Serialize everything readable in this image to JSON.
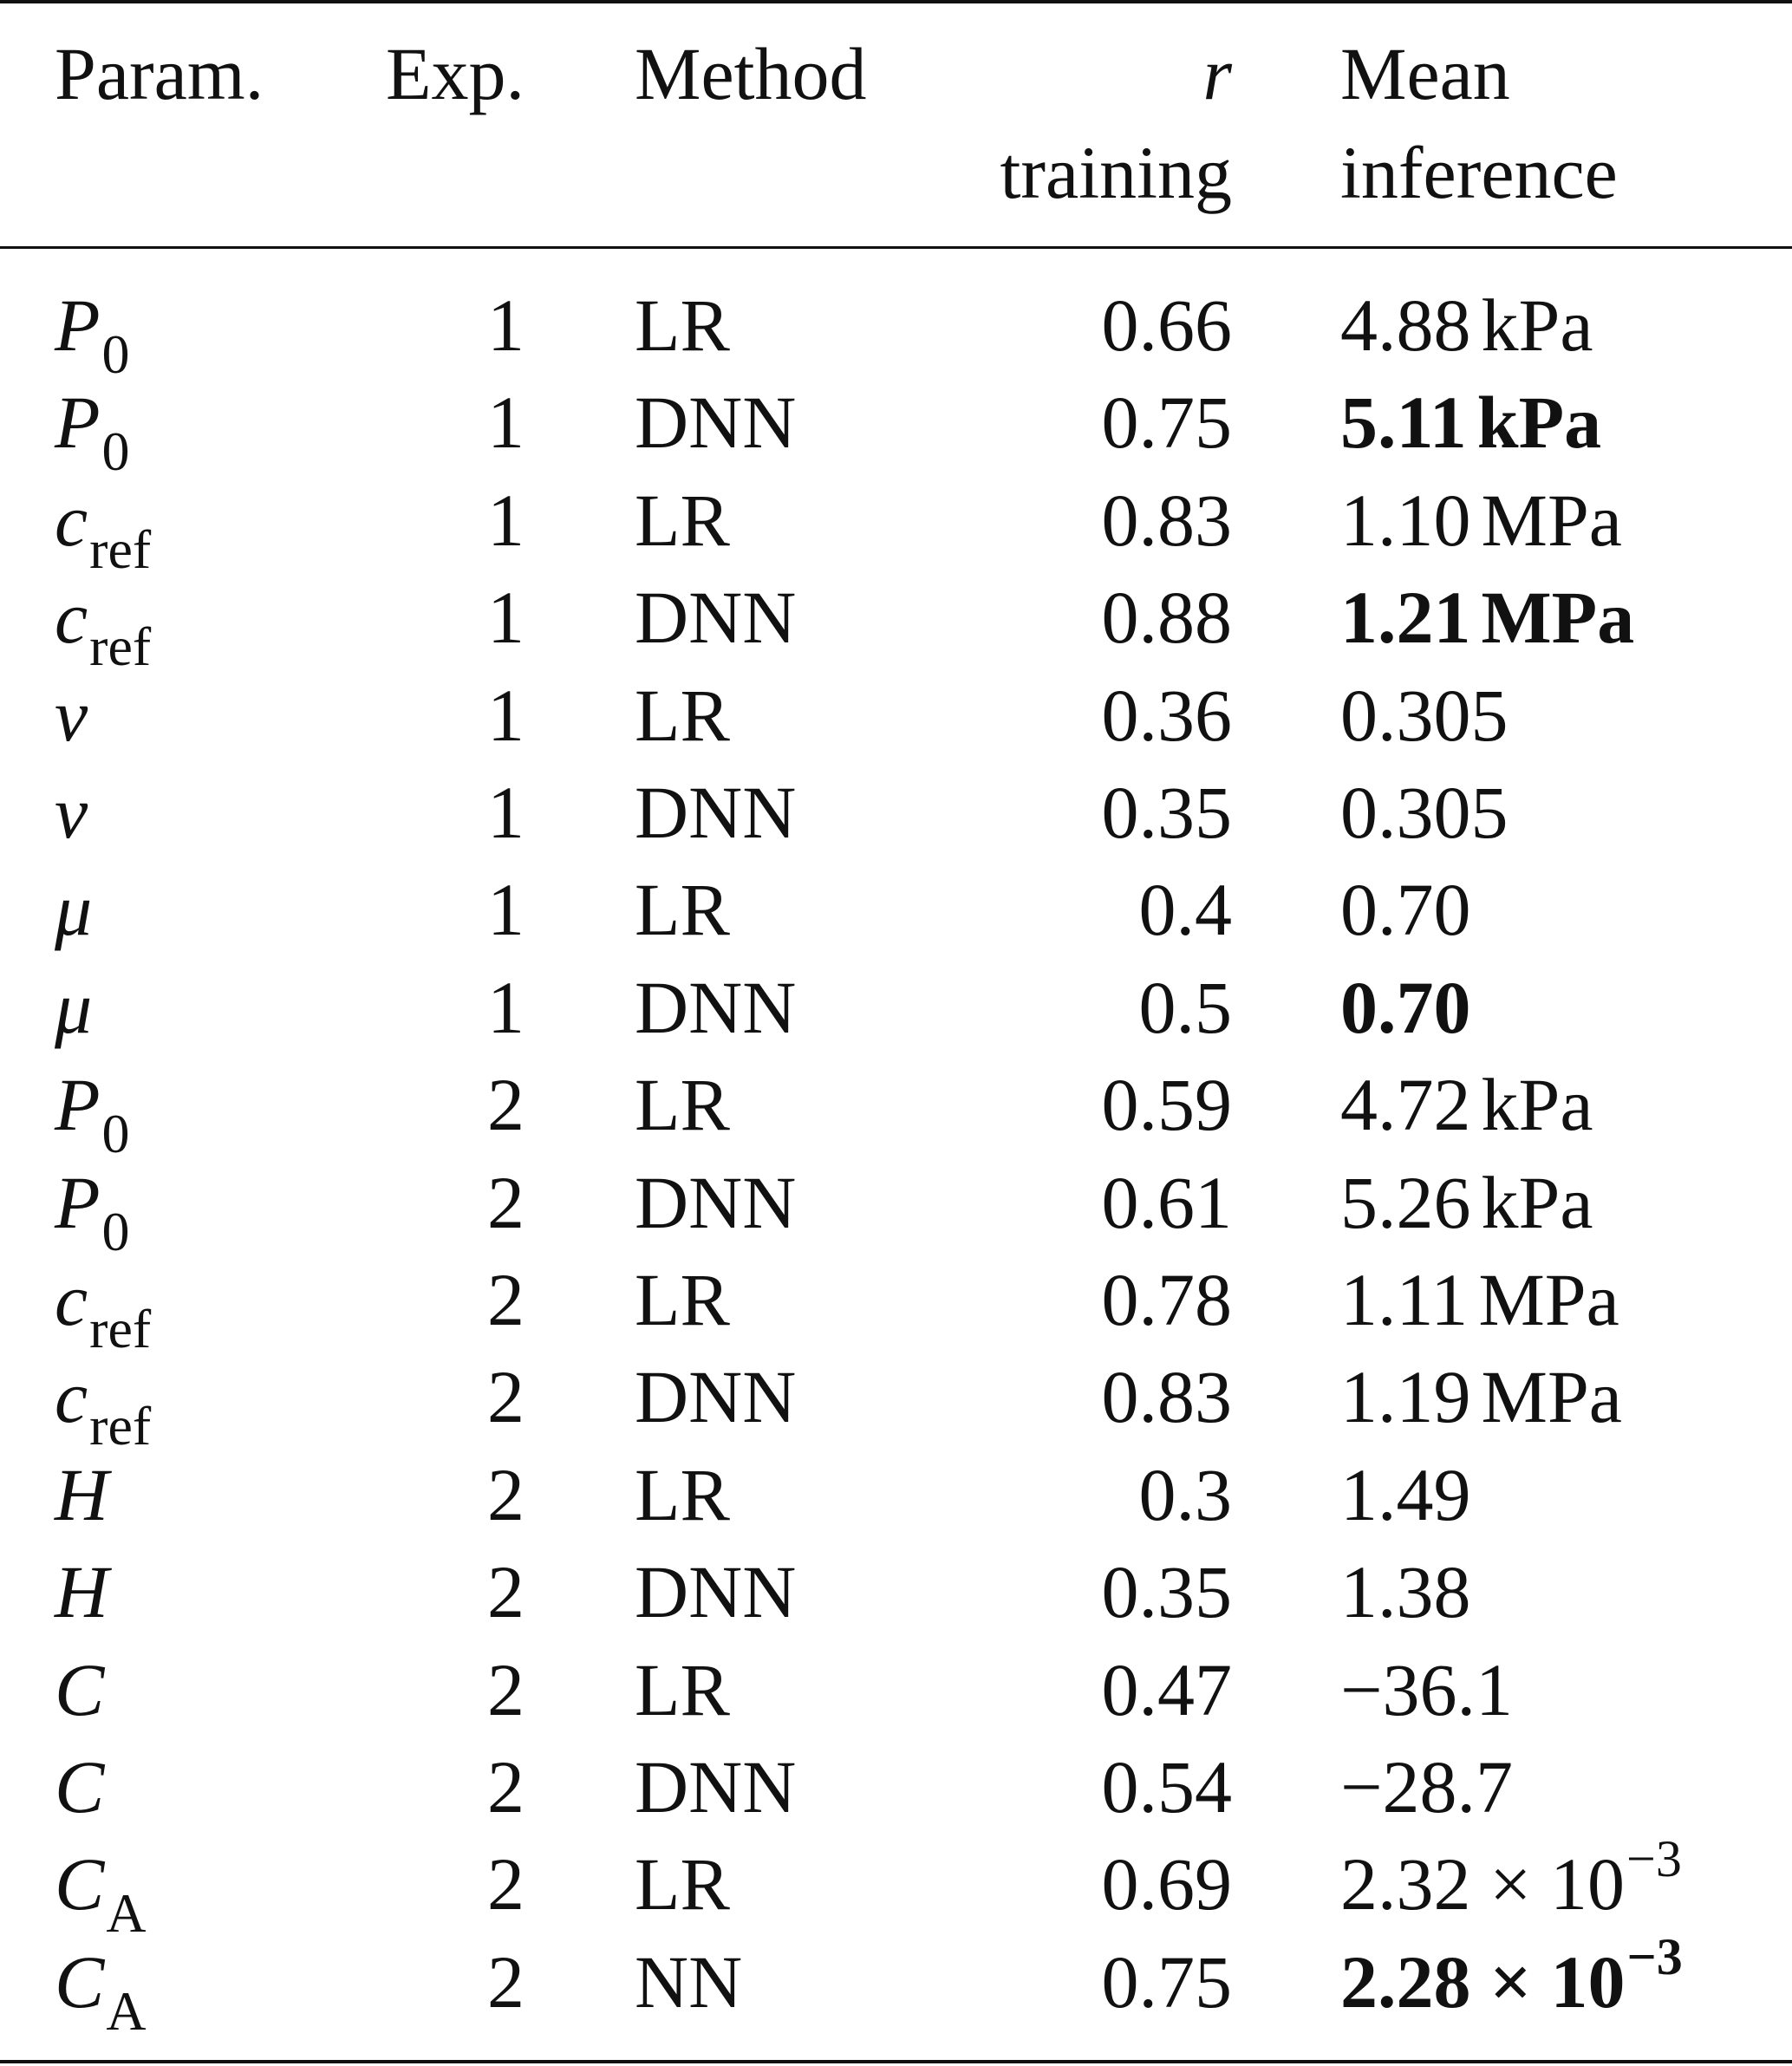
{
  "header": {
    "param": "Param.",
    "exp": "Exp.",
    "method": "Method",
    "r_line1": "r",
    "r_line2": "training",
    "mean_line1": "Mean",
    "mean_line2": "inference"
  },
  "rows": [
    {
      "sym": "P",
      "sub": "0",
      "exp": "1",
      "method": "LR",
      "r": "0.66",
      "val": "4.88",
      "unit": "kPa",
      "exp10": "",
      "bold": false
    },
    {
      "sym": "P",
      "sub": "0",
      "exp": "1",
      "method": "DNN",
      "r": "0.75",
      "val": "5.11",
      "unit": "kPa",
      "exp10": "",
      "bold": true
    },
    {
      "sym": "c",
      "sub": "ref",
      "exp": "1",
      "method": "LR",
      "r": "0.83",
      "val": "1.10",
      "unit": "MPa",
      "exp10": "",
      "bold": false
    },
    {
      "sym": "c",
      "sub": "ref",
      "exp": "1",
      "method": "DNN",
      "r": "0.88",
      "val": "1.21",
      "unit": "MPa",
      "exp10": "",
      "bold": true
    },
    {
      "sym": "ν",
      "sub": "",
      "exp": "1",
      "method": "LR",
      "r": "0.36",
      "val": "0.305",
      "unit": "",
      "exp10": "",
      "bold": false
    },
    {
      "sym": "ν",
      "sub": "",
      "exp": "1",
      "method": "DNN",
      "r": "0.35",
      "val": "0.305",
      "unit": "",
      "exp10": "",
      "bold": false
    },
    {
      "sym": "μ",
      "sub": "",
      "exp": "1",
      "method": "LR",
      "r": "0.4",
      "val": "0.70",
      "unit": "",
      "exp10": "",
      "bold": false
    },
    {
      "sym": "μ",
      "sub": "",
      "exp": "1",
      "method": "DNN",
      "r": "0.5",
      "val": "0.70",
      "unit": "",
      "exp10": "",
      "bold": true
    },
    {
      "sym": "P",
      "sub": "0",
      "exp": "2",
      "method": "LR",
      "r": "0.59",
      "val": "4.72",
      "unit": "kPa",
      "exp10": "",
      "bold": false
    },
    {
      "sym": "P",
      "sub": "0",
      "exp": "2",
      "method": "DNN",
      "r": "0.61",
      "val": "5.26",
      "unit": "kPa",
      "exp10": "",
      "bold": false
    },
    {
      "sym": "c",
      "sub": "ref",
      "exp": "2",
      "method": "LR",
      "r": "0.78",
      "val": "1.11",
      "unit": "MPa",
      "exp10": "",
      "bold": false
    },
    {
      "sym": "c",
      "sub": "ref",
      "exp": "2",
      "method": "DNN",
      "r": "0.83",
      "val": "1.19",
      "unit": "MPa",
      "exp10": "",
      "bold": false
    },
    {
      "sym": "H",
      "sub": "",
      "exp": "2",
      "method": "LR",
      "r": "0.3",
      "val": "1.49",
      "unit": "",
      "exp10": "",
      "bold": false
    },
    {
      "sym": "H",
      "sub": "",
      "exp": "2",
      "method": "DNN",
      "r": "0.35",
      "val": "1.38",
      "unit": "",
      "exp10": "",
      "bold": false
    },
    {
      "sym": "C",
      "sub": "",
      "exp": "2",
      "method": "LR",
      "r": "0.47",
      "val": "−36.1",
      "unit": "",
      "exp10": "",
      "bold": false
    },
    {
      "sym": "C",
      "sub": "",
      "exp": "2",
      "method": "DNN",
      "r": "0.54",
      "val": "−28.7",
      "unit": "",
      "exp10": "",
      "bold": false
    },
    {
      "sym": "C",
      "sub": "A",
      "exp": "2",
      "method": "LR",
      "r": "0.69",
      "val": "2.32 × 10",
      "unit": "",
      "exp10": "−3",
      "bold": false
    },
    {
      "sym": "C",
      "sub": "A",
      "exp": "2",
      "method": "NN",
      "r": "0.75",
      "val": "2.28 × 10",
      "unit": "",
      "exp10": "−3",
      "bold": true
    }
  ]
}
